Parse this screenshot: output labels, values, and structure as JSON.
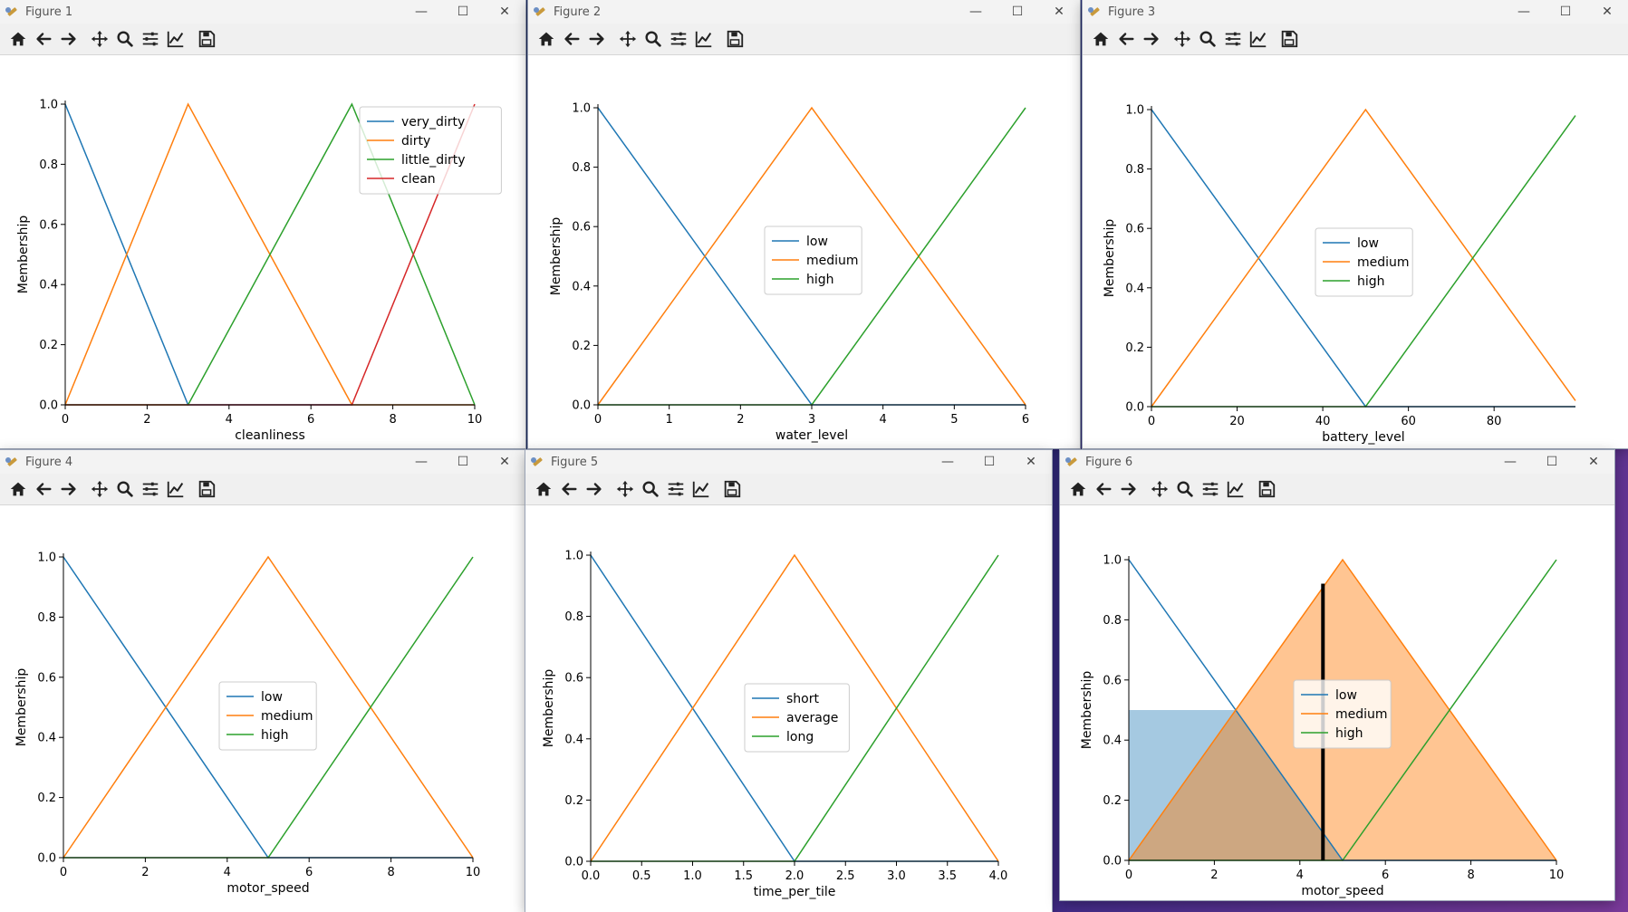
{
  "toolbar_icons": [
    "home-icon",
    "back-icon",
    "forward-icon",
    "pan-icon",
    "zoom-icon",
    "configure-subplots-icon",
    "edit-axis-icon",
    "save-icon"
  ],
  "window_controls": {
    "minimize": "—",
    "maximize": "☐",
    "close": "✕"
  },
  "colors": {
    "blue": "#1f77b4",
    "orange": "#ff7f0e",
    "green": "#2ca02c",
    "red": "#d62728"
  },
  "windows": [
    {
      "title": "Figure 1",
      "chart_data": {
        "type": "line",
        "xlabel": "cleanliness",
        "ylabel": "Membership",
        "xlim": [
          0,
          10
        ],
        "ylim": [
          0,
          1
        ],
        "xticks": [
          0,
          2,
          4,
          6,
          8,
          10
        ],
        "xtick_labels": [
          "0",
          "2",
          "4",
          "6",
          "8",
          "10"
        ],
        "yticks": [
          0,
          0.2,
          0.4,
          0.6,
          0.8,
          1.0
        ],
        "ytick_labels": [
          "0.0",
          "0.2",
          "0.4",
          "0.6",
          "0.8",
          "1.0"
        ],
        "legend": "upper-right",
        "series": [
          {
            "name": "very_dirty",
            "color": "#1f77b4",
            "x": [
              0,
              3,
              10
            ],
            "y": [
              1,
              0,
              0
            ]
          },
          {
            "name": "dirty",
            "color": "#ff7f0e",
            "x": [
              0,
              3,
              7,
              10
            ],
            "y": [
              0,
              1,
              0,
              0
            ]
          },
          {
            "name": "little_dirty",
            "color": "#2ca02c",
            "x": [
              0,
              3,
              7,
              10
            ],
            "y": [
              0,
              0,
              1,
              0
            ]
          },
          {
            "name": "clean",
            "color": "#d62728",
            "x": [
              0,
              7,
              10
            ],
            "y": [
              0,
              0,
              1
            ]
          }
        ]
      }
    },
    {
      "title": "Figure 2",
      "chart_data": {
        "type": "line",
        "xlabel": "water_level",
        "ylabel": "Membership",
        "xlim": [
          0,
          6
        ],
        "ylim": [
          0,
          1
        ],
        "xticks": [
          0,
          1,
          2,
          3,
          4,
          5,
          6
        ],
        "xtick_labels": [
          "0",
          "1",
          "2",
          "3",
          "4",
          "5",
          "6"
        ],
        "yticks": [
          0,
          0.2,
          0.4,
          0.6,
          0.8,
          1.0
        ],
        "ytick_labels": [
          "0.0",
          "0.2",
          "0.4",
          "0.6",
          "0.8",
          "1.0"
        ],
        "legend": "center",
        "series": [
          {
            "name": "low",
            "color": "#1f77b4",
            "x": [
              0,
              3,
              6
            ],
            "y": [
              1,
              0,
              0
            ]
          },
          {
            "name": "medium",
            "color": "#ff7f0e",
            "x": [
              0,
              3,
              6
            ],
            "y": [
              0,
              1,
              0
            ]
          },
          {
            "name": "high",
            "color": "#2ca02c",
            "x": [
              0,
              3,
              6
            ],
            "y": [
              0,
              0,
              1
            ]
          }
        ]
      }
    },
    {
      "title": "Figure 3",
      "chart_data": {
        "type": "line",
        "xlabel": "battery_level",
        "ylabel": "Membership",
        "xlim": [
          0,
          99
        ],
        "ylim": [
          0,
          1
        ],
        "xticks": [
          0,
          20,
          40,
          60,
          80
        ],
        "xtick_labels": [
          "0",
          "20",
          "40",
          "60",
          "80"
        ],
        "yticks": [
          0,
          0.2,
          0.4,
          0.6,
          0.8,
          1.0
        ],
        "ytick_labels": [
          "0.0",
          "0.2",
          "0.4",
          "0.6",
          "0.8",
          "1.0"
        ],
        "legend": "center",
        "series": [
          {
            "name": "low",
            "color": "#1f77b4",
            "x": [
              0,
              50,
              99
            ],
            "y": [
              1,
              0,
              0
            ]
          },
          {
            "name": "medium",
            "color": "#ff7f0e",
            "x": [
              0,
              50,
              99
            ],
            "y": [
              0,
              1,
              0.02
            ]
          },
          {
            "name": "high",
            "color": "#2ca02c",
            "x": [
              0,
              50,
              99
            ],
            "y": [
              0,
              0,
              0.98
            ]
          }
        ]
      }
    },
    {
      "title": "Figure 4",
      "chart_data": {
        "type": "line",
        "xlabel": "motor_speed",
        "ylabel": "Membership",
        "xlim": [
          0,
          10
        ],
        "ylim": [
          0,
          1
        ],
        "xticks": [
          0,
          2,
          4,
          6,
          8,
          10
        ],
        "xtick_labels": [
          "0",
          "2",
          "4",
          "6",
          "8",
          "10"
        ],
        "yticks": [
          0,
          0.2,
          0.4,
          0.6,
          0.8,
          1.0
        ],
        "ytick_labels": [
          "0.0",
          "0.2",
          "0.4",
          "0.6",
          "0.8",
          "1.0"
        ],
        "legend": "center",
        "series": [
          {
            "name": "low",
            "color": "#1f77b4",
            "x": [
              0,
              5,
              10
            ],
            "y": [
              1,
              0,
              0
            ]
          },
          {
            "name": "medium",
            "color": "#ff7f0e",
            "x": [
              0,
              5,
              10
            ],
            "y": [
              0,
              1,
              0
            ]
          },
          {
            "name": "high",
            "color": "#2ca02c",
            "x": [
              0,
              5,
              10
            ],
            "y": [
              0,
              0,
              1
            ]
          }
        ]
      }
    },
    {
      "title": "Figure 5",
      "chart_data": {
        "type": "line",
        "xlabel": "time_per_tile",
        "ylabel": "Membership",
        "xlim": [
          0,
          4
        ],
        "ylim": [
          0,
          1
        ],
        "xticks": [
          0,
          0.5,
          1,
          1.5,
          2,
          2.5,
          3,
          3.5,
          4
        ],
        "xtick_labels": [
          "0.0",
          "0.5",
          "1.0",
          "1.5",
          "2.0",
          "2.5",
          "3.0",
          "3.5",
          "4.0"
        ],
        "yticks": [
          0,
          0.2,
          0.4,
          0.6,
          0.8,
          1.0
        ],
        "ytick_labels": [
          "0.0",
          "0.2",
          "0.4",
          "0.6",
          "0.8",
          "1.0"
        ],
        "legend": "center",
        "series": [
          {
            "name": "short",
            "color": "#1f77b4",
            "x": [
              0,
              2,
              4
            ],
            "y": [
              1,
              0,
              0
            ]
          },
          {
            "name": "average",
            "color": "#ff7f0e",
            "x": [
              0,
              2,
              4
            ],
            "y": [
              0,
              1,
              0
            ]
          },
          {
            "name": "long",
            "color": "#2ca02c",
            "x": [
              0,
              2,
              4
            ],
            "y": [
              0,
              0,
              1
            ]
          }
        ]
      }
    },
    {
      "title": "Figure 6",
      "chart_data": {
        "type": "line",
        "xlabel": "motor_speed",
        "ylabel": "Membership",
        "xlim": [
          0,
          10
        ],
        "ylim": [
          0,
          1
        ],
        "xticks": [
          0,
          2,
          4,
          6,
          8,
          10
        ],
        "xtick_labels": [
          "0",
          "2",
          "4",
          "6",
          "8",
          "10"
        ],
        "yticks": [
          0,
          0.2,
          0.4,
          0.6,
          0.8,
          1.0
        ],
        "ytick_labels": [
          "0.0",
          "0.2",
          "0.4",
          "0.6",
          "0.8",
          "1.0"
        ],
        "legend": "center",
        "series": [
          {
            "name": "low",
            "color": "#1f77b4",
            "x": [
              0,
              5,
              10
            ],
            "y": [
              1,
              0,
              0
            ]
          },
          {
            "name": "medium",
            "color": "#ff7f0e",
            "x": [
              0,
              5,
              10
            ],
            "y": [
              0,
              1,
              0
            ]
          },
          {
            "name": "high",
            "color": "#2ca02c",
            "x": [
              0,
              5,
              10
            ],
            "y": [
              0,
              0,
              1
            ]
          }
        ],
        "fills": [
          {
            "color": "#1f77b4",
            "opacity": 0.4,
            "x": [
              0,
              2.5,
              4.5,
              5
            ],
            "y": [
              0.5,
              0.5,
              0.1,
              0
            ]
          },
          {
            "color": "#ff7f0e",
            "opacity": 0.45,
            "x": [
              0,
              5,
              10
            ],
            "y": [
              0,
              1,
              0
            ]
          }
        ],
        "vline": {
          "x": 4.54,
          "y0": 0,
          "y1": 0.92,
          "color": "#000000"
        }
      }
    }
  ]
}
